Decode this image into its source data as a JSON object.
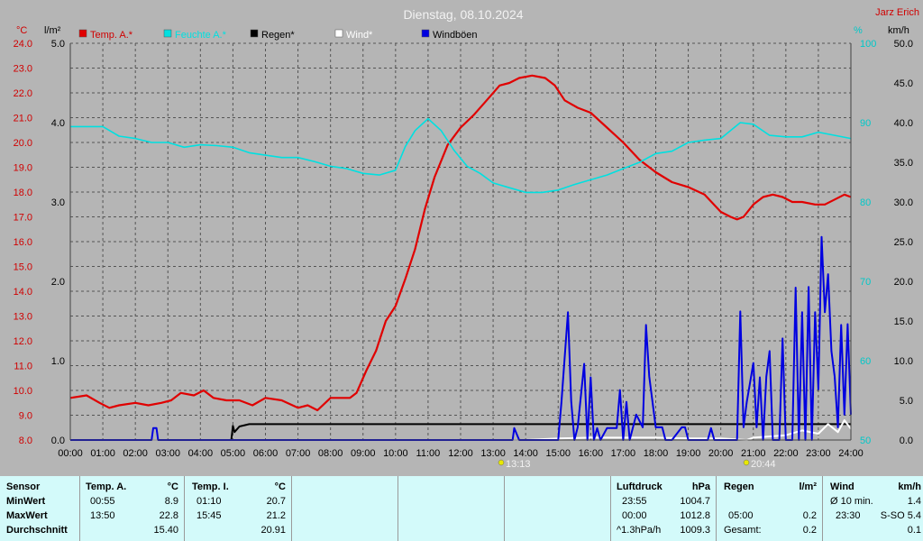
{
  "header": {
    "title": "Dienstag, 08.10.2024",
    "author": "Jarz Erich"
  },
  "legend": [
    {
      "label": "Temp. A.*",
      "color": "#e00000"
    },
    {
      "label": "Feuchte A.*",
      "color": "#00e0e0"
    },
    {
      "label": "Regen*",
      "color": "#000000"
    },
    {
      "label": "Wind*",
      "color": "#ffffff"
    },
    {
      "label": "Windböen",
      "color": "#0000e0"
    }
  ],
  "axis_units": {
    "temp": "°C",
    "rain": "l/m²",
    "humidity": "%",
    "wind": "km/h"
  },
  "markers": [
    {
      "label": "13:13"
    },
    {
      "label": "20:44"
    }
  ],
  "chart_data": {
    "type": "line",
    "title": "Dienstag, 08.10.2024",
    "x_unit": "hour",
    "x_ticks": [
      "00:00",
      "01:00",
      "02:00",
      "03:00",
      "04:00",
      "05:00",
      "06:00",
      "07:00",
      "08:00",
      "09:00",
      "10:00",
      "11:00",
      "12:00",
      "13:00",
      "14:00",
      "15:00",
      "16:00",
      "17:00",
      "18:00",
      "19:00",
      "20:00",
      "21:00",
      "22:00",
      "23:00",
      "24:00"
    ],
    "axes": {
      "temp": {
        "label": "°C",
        "range": [
          8.0,
          24.0
        ],
        "ticks": [
          "8.0",
          "9.0",
          "10.0",
          "11.0",
          "12.0",
          "13.0",
          "14.0",
          "15.0",
          "16.0",
          "17.0",
          "18.0",
          "19.0",
          "20.0",
          "21.0",
          "22.0",
          "23.0",
          "24.0"
        ]
      },
      "rain": {
        "label": "l/m²",
        "range": [
          0.0,
          5.0
        ],
        "ticks": [
          "0.0",
          "1.0",
          "2.0",
          "3.0",
          "4.0",
          "5.0"
        ]
      },
      "humidity": {
        "label": "%",
        "range": [
          50,
          100
        ],
        "ticks": [
          "50",
          "60",
          "70",
          "80",
          "90",
          "100"
        ]
      },
      "wind": {
        "label": "km/h",
        "range": [
          0.0,
          50.0
        ],
        "ticks": [
          "0.0",
          "5.0",
          "10.0",
          "15.0",
          "20.0",
          "25.0",
          "30.0",
          "35.0",
          "40.0",
          "45.0",
          "50.0"
        ]
      }
    },
    "grid": true,
    "series": [
      {
        "name": "Temp. A.*",
        "axis": "temp",
        "color": "#e00000",
        "x": [
          0,
          0.5,
          0.9,
          1.2,
          1.5,
          2,
          2.4,
          2.8,
          3.1,
          3.4,
          3.8,
          4.1,
          4.4,
          4.8,
          5.2,
          5.6,
          6,
          6.5,
          7,
          7.3,
          7.6,
          8,
          8.3,
          8.6,
          8.8,
          9.1,
          9.4,
          9.7,
          10,
          10.3,
          10.6,
          10.9,
          11.2,
          11.6,
          12,
          12.4,
          12.8,
          13.2,
          13.5,
          13.8,
          14.2,
          14.6,
          14.9,
          15.2,
          15.6,
          16,
          16.5,
          17,
          17.5,
          18,
          18.5,
          19,
          19.5,
          20,
          20.3,
          20.5,
          20.7,
          21,
          21.3,
          21.6,
          21.9,
          22.2,
          22.5,
          22.9,
          23.2,
          23.5,
          23.8,
          24
        ],
        "y": [
          9.7,
          9.8,
          9.5,
          9.3,
          9.4,
          9.5,
          9.4,
          9.5,
          9.6,
          9.9,
          9.8,
          10.0,
          9.7,
          9.6,
          9.6,
          9.4,
          9.7,
          9.6,
          9.3,
          9.4,
          9.2,
          9.7,
          9.7,
          9.7,
          9.9,
          10.8,
          11.6,
          12.8,
          13.4,
          14.5,
          15.7,
          17.3,
          18.6,
          19.9,
          20.6,
          21.1,
          21.7,
          22.3,
          22.4,
          22.6,
          22.7,
          22.6,
          22.3,
          21.7,
          21.4,
          21.2,
          20.6,
          20.0,
          19.3,
          18.8,
          18.4,
          18.2,
          17.9,
          17.2,
          17.0,
          16.9,
          17.0,
          17.5,
          17.8,
          17.9,
          17.8,
          17.6,
          17.6,
          17.5,
          17.5,
          17.7,
          17.9,
          17.8
        ]
      },
      {
        "name": "Feuchte A.*",
        "axis": "humidity",
        "color": "#00e0e0",
        "x": [
          0,
          0.5,
          1,
          1.5,
          2,
          2.5,
          3,
          3.5,
          4,
          4.5,
          5,
          5.5,
          6,
          6.5,
          7,
          7.5,
          8,
          8.5,
          9,
          9.5,
          10,
          10.3,
          10.6,
          11,
          11.4,
          11.8,
          12.2,
          12.6,
          13,
          13.5,
          14,
          14.5,
          15,
          15.5,
          16,
          16.5,
          17,
          17.5,
          18,
          18.5,
          19,
          19.5,
          20,
          20.3,
          20.6,
          21,
          21.5,
          22,
          22.5,
          23,
          23.5,
          24
        ],
        "y": [
          89.5,
          89.5,
          89.5,
          88.3,
          88,
          87.5,
          87.5,
          86.9,
          87.2,
          87.1,
          86.9,
          86.2,
          85.9,
          85.6,
          85.6,
          85.1,
          84.5,
          84.2,
          83.6,
          83.4,
          84,
          87,
          89,
          90.5,
          89,
          86.5,
          84.5,
          83.6,
          82.4,
          81.8,
          81.2,
          81.2,
          81.5,
          82.2,
          82.8,
          83.4,
          84.2,
          85,
          86.1,
          86.4,
          87.5,
          87.8,
          88,
          89,
          90,
          89.8,
          88.4,
          88.2,
          88.2,
          88.8,
          88.4,
          88
        ]
      },
      {
        "name": "Regen*",
        "axis": "rain",
        "color": "#000000",
        "x": [
          0,
          4.95,
          5.0,
          5.05,
          5.2,
          5.5,
          6.0,
          24
        ],
        "y": [
          0.0,
          0.0,
          0.18,
          0.1,
          0.17,
          0.2,
          0.2,
          0.2
        ]
      },
      {
        "name": "Wind*",
        "axis": "wind",
        "color": "#ffffff",
        "x": [
          0,
          13,
          14,
          15,
          16,
          17,
          18,
          19,
          20,
          20.8,
          21,
          22,
          22.5,
          23,
          23.3,
          23.6,
          23.8,
          24
        ],
        "y": [
          0,
          0,
          0,
          0.2,
          0.3,
          0.3,
          0.3,
          0.2,
          0.2,
          0,
          0.3,
          0.6,
          1.2,
          0.8,
          2.0,
          1.0,
          2.5,
          1.4
        ]
      },
      {
        "name": "Windböen",
        "axis": "wind",
        "color": "#0000e0",
        "x": [
          0,
          2.5,
          2.55,
          2.65,
          2.7,
          13.6,
          13.65,
          13.8,
          13.85,
          14.0,
          15.0,
          15.1,
          15.3,
          15.4,
          15.5,
          15.6,
          15.8,
          15.9,
          16.0,
          16.1,
          16.2,
          16.3,
          16.5,
          16.8,
          16.9,
          17.0,
          17.1,
          17.2,
          17.4,
          17.6,
          17.7,
          17.8,
          18.0,
          18.1,
          18.2,
          18.3,
          18.5,
          18.8,
          18.9,
          19.0,
          19.6,
          19.7,
          19.8,
          20.0,
          20.5,
          20.6,
          20.7,
          20.8,
          21.0,
          21.1,
          21.2,
          21.3,
          21.4,
          21.5,
          21.6,
          21.7,
          21.8,
          21.9,
          22.0,
          22.2,
          22.3,
          22.4,
          22.5,
          22.6,
          22.7,
          22.8,
          22.9,
          23.0,
          23.1,
          23.2,
          23.3,
          23.4,
          23.5,
          23.6,
          23.7,
          23.8,
          23.9,
          24.0
        ],
        "y": [
          0,
          0,
          1.5,
          1.5,
          0,
          0,
          1.5,
          0,
          0,
          0,
          0,
          4.8,
          16.1,
          4.9,
          0,
          1.6,
          9.6,
          0,
          7.9,
          0,
          1.5,
          0,
          1.5,
          1.5,
          6.3,
          0,
          4.8,
          0,
          3.2,
          1.6,
          14.5,
          8.0,
          1.6,
          1.6,
          1.6,
          0,
          0,
          1.6,
          1.6,
          0,
          0,
          1.5,
          0,
          0,
          0,
          16.2,
          1.6,
          4.8,
          9.7,
          1.6,
          7.9,
          0,
          8.0,
          11.2,
          0,
          0,
          0,
          12.8,
          0,
          0,
          19.2,
          0,
          16.1,
          0,
          19.3,
          0,
          16.1,
          6.4,
          25.6,
          16.1,
          20.9,
          11.2,
          8.0,
          1.6,
          14.5,
          3.2,
          14.6,
          3.2
        ]
      }
    ]
  },
  "table": {
    "rows": [
      "MinWert",
      "MaxWert",
      "Durchschnitt"
    ],
    "sensor_header": "Sensor",
    "temp_a": {
      "header": "Temp. A.",
      "unit": "°C",
      "times": [
        "00:55",
        "13:50",
        ""
      ],
      "values": [
        "8.9",
        "22.8",
        "15.40"
      ]
    },
    "temp_i": {
      "header": "Temp. I.",
      "unit": "°C",
      "times": [
        "01:10",
        "15:45",
        ""
      ],
      "values": [
        "20.7",
        "21.2",
        "20.91"
      ]
    },
    "pressure": {
      "header": "Luftdruck",
      "unit": "hPa",
      "times": [
        "23:55",
        "00:00",
        "^1.3hPa/h"
      ],
      "values": [
        "1004.7",
        "1012.8",
        "1009.3"
      ]
    },
    "rain": {
      "header": "Regen",
      "unit": "l/m²",
      "times": [
        "",
        "05:00",
        "Gesamt:"
      ],
      "values": [
        "",
        "0.2",
        "0.2"
      ]
    },
    "wind": {
      "header": "Wind",
      "unit": "km/h",
      "times": [
        "Ø 10 min.",
        "23:30",
        ""
      ],
      "values": [
        "1.4",
        "S-SO 5.4",
        "0.1"
      ]
    }
  }
}
